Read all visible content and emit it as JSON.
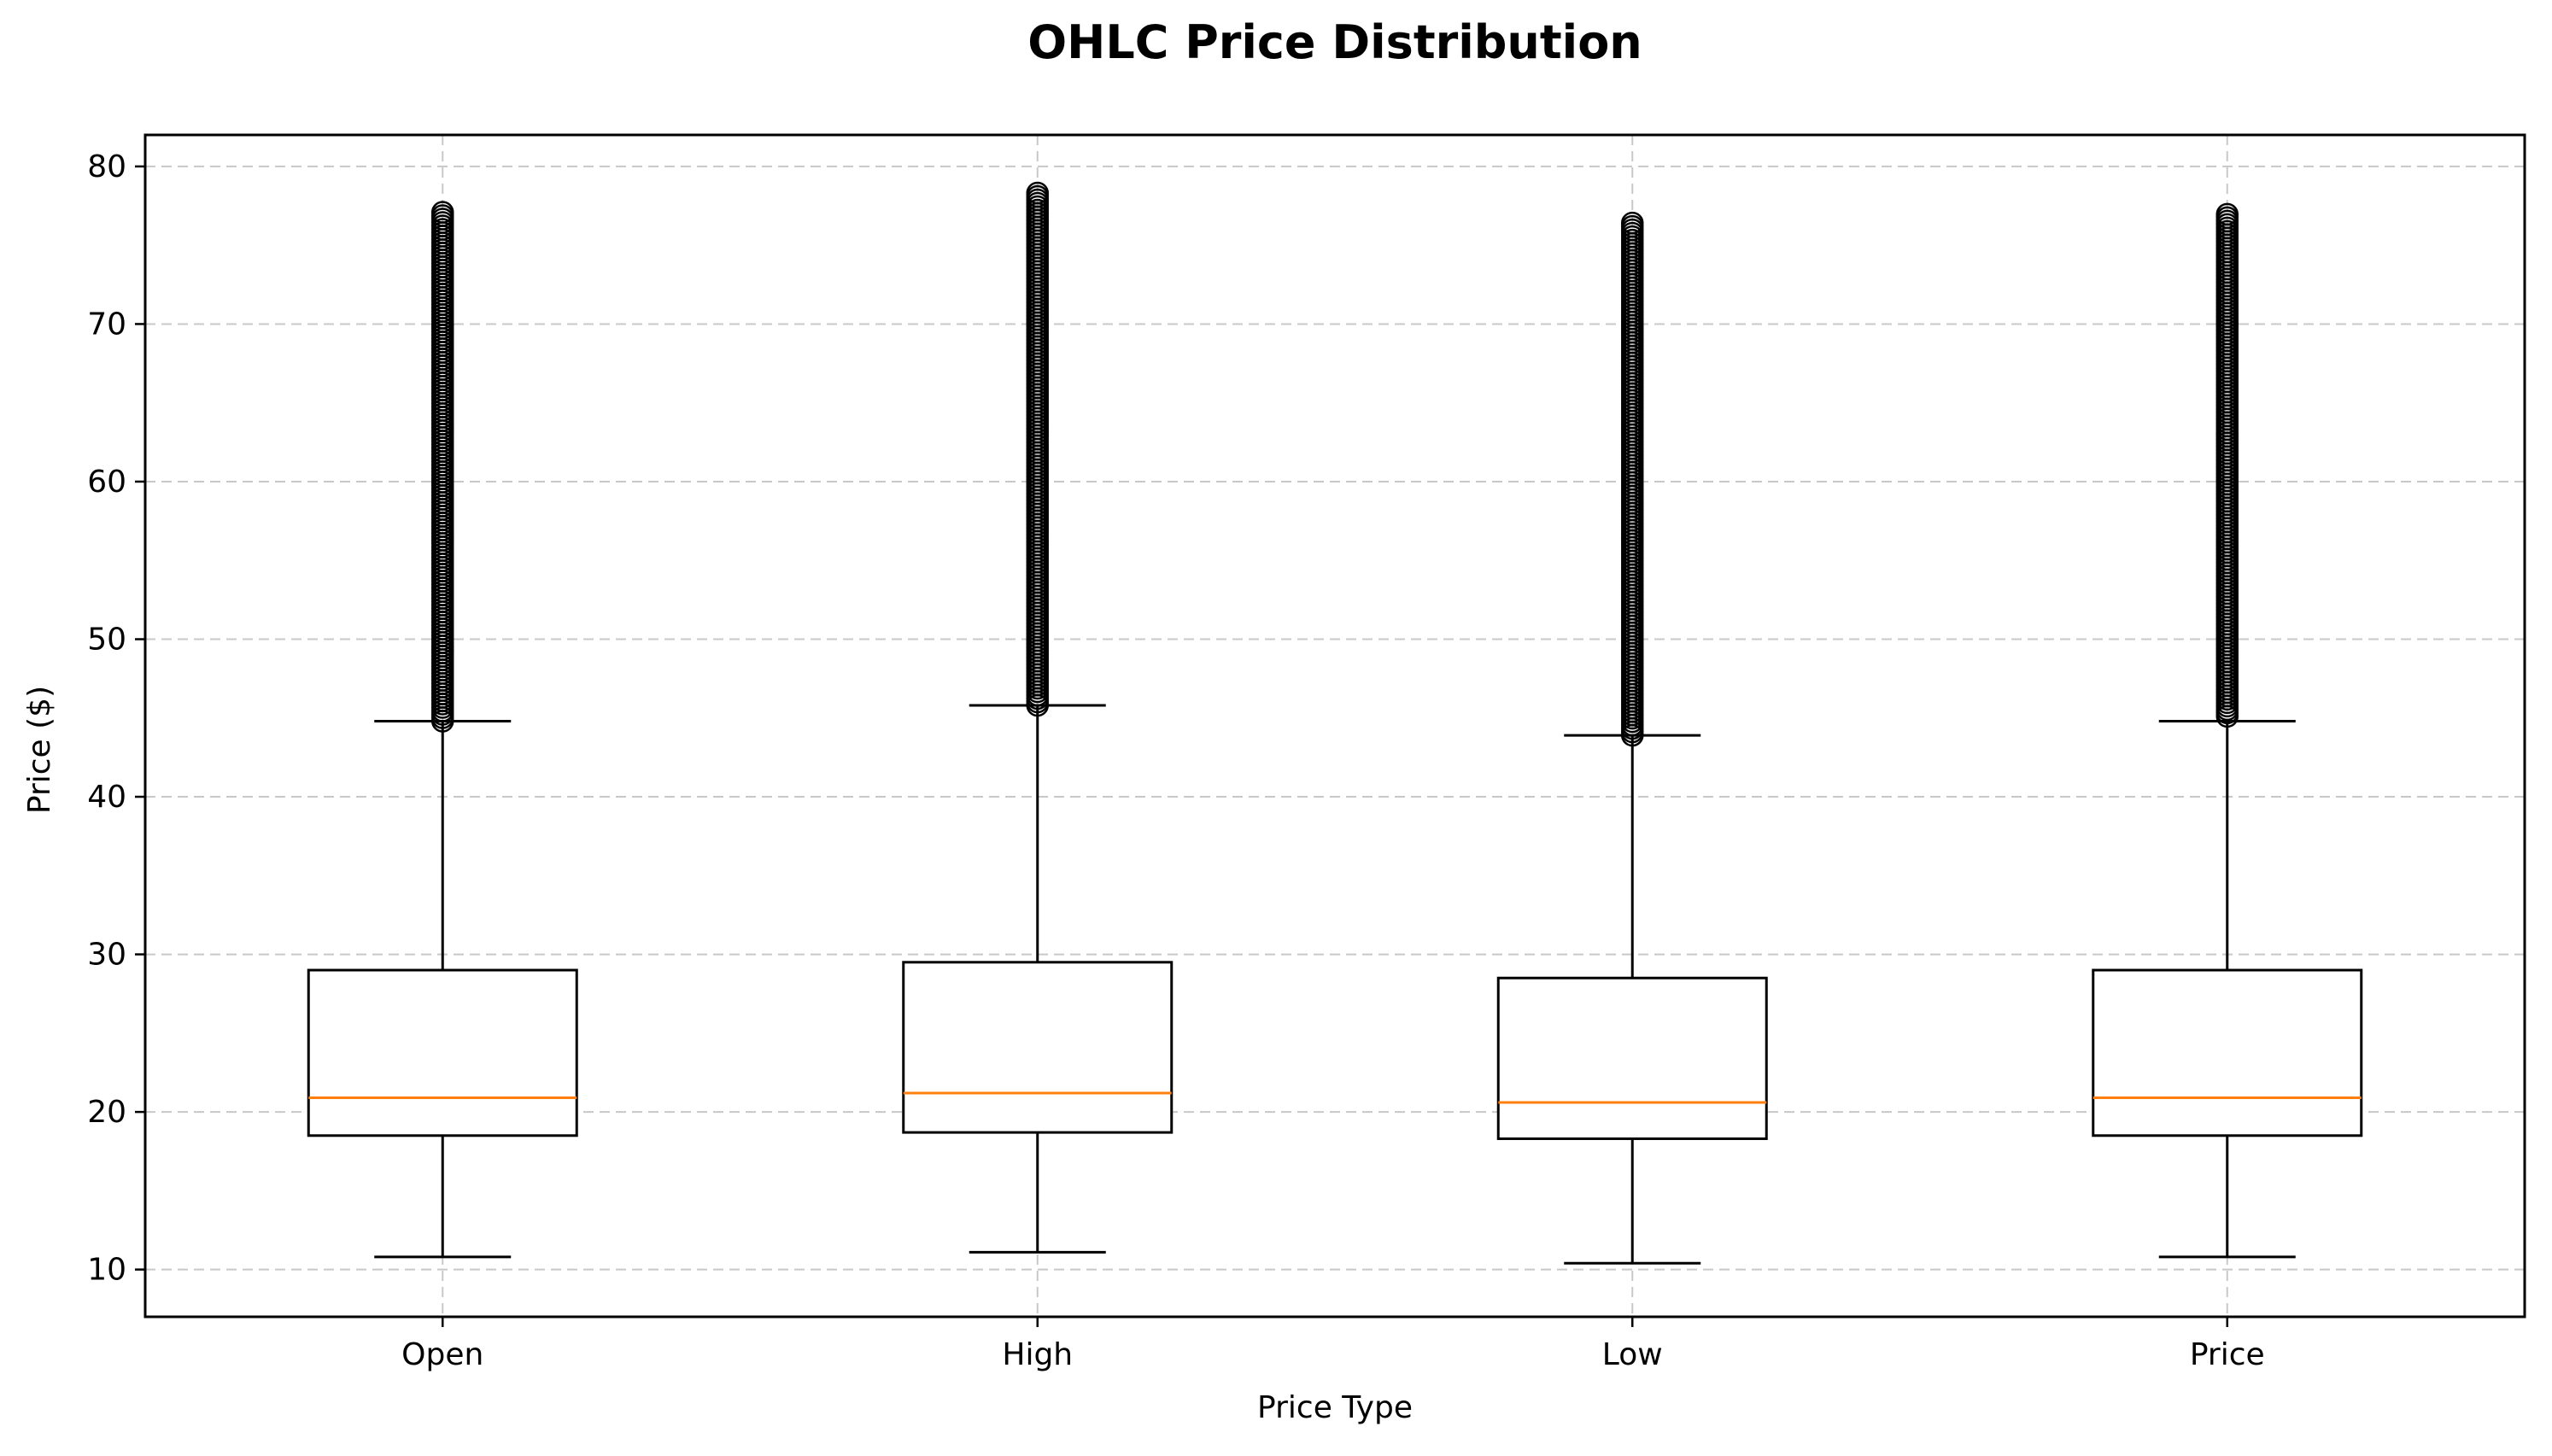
{
  "chart_data": {
    "type": "boxplot",
    "title": "OHLC Price Distribution",
    "xlabel": "Price Type",
    "ylabel": "Price ($)",
    "ylim": [
      7,
      82
    ],
    "yticks": [
      10,
      20,
      30,
      40,
      50,
      60,
      70,
      80
    ],
    "grid": true,
    "categories": [
      "Open",
      "High",
      "Low",
      "Price"
    ],
    "series": [
      {
        "category": "Open",
        "whisker_low": 10.8,
        "q1": 18.5,
        "median": 20.9,
        "q3": 29.0,
        "whisker_high": 44.8,
        "outliers_min": 44.8,
        "outliers_max": 77.1
      },
      {
        "category": "High",
        "whisker_low": 11.1,
        "q1": 18.7,
        "median": 21.2,
        "q3": 29.5,
        "whisker_high": 45.8,
        "outliers_min": 45.8,
        "outliers_max": 78.4
      },
      {
        "category": "Low",
        "whisker_low": 10.4,
        "q1": 18.3,
        "median": 20.6,
        "q3": 28.5,
        "whisker_high": 43.9,
        "outliers_min": 43.9,
        "outliers_max": 76.6
      },
      {
        "category": "Price",
        "whisker_low": 10.8,
        "q1": 18.5,
        "median": 20.9,
        "q3": 29.0,
        "whisker_high": 44.8,
        "outliers_min": 45.1,
        "outliers_max": 77.1
      }
    ],
    "colors": {
      "box": "#000000",
      "median": "#ff7f0e",
      "grid": "#c8c8c8",
      "outlier": "#000000"
    }
  }
}
